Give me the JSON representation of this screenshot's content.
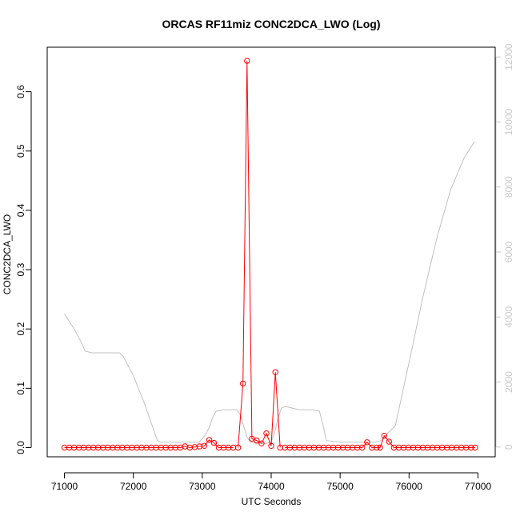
{
  "chart_data": {
    "type": "line",
    "title": "ORCAS RF11miz CONC2DCA_LWO (Log)",
    "xlabel": "UTC Seconds",
    "ylabel": "CONC2DCA_LWO",
    "xlim": [
      70750,
      77250
    ],
    "ylim": [
      -0.0155,
      0.675
    ],
    "ylim_right": [
      -300,
      12300
    ],
    "x_ticks": [
      71000,
      72000,
      73000,
      74000,
      75000,
      76000,
      77000
    ],
    "y_ticks": [
      "0.0",
      "0.1",
      "0.2",
      "0.3",
      "0.4",
      "0.5",
      "0.6"
    ],
    "y_tick_values": [
      0.0,
      0.1,
      0.2,
      0.3,
      0.4,
      0.5,
      0.6
    ],
    "y_right_ticks": [
      0,
      2000,
      4000,
      6000,
      8000,
      10000,
      12000
    ],
    "grid": false,
    "legend": "none",
    "series": [
      {
        "style": "line+points",
        "color": "#ff0000",
        "axis": "left",
        "x": [
          71000,
          71070,
          71140,
          71210,
          71280,
          71350,
          71420,
          71490,
          71560,
          71630,
          71700,
          71770,
          71840,
          71910,
          71980,
          72050,
          72120,
          72190,
          72260,
          72330,
          72400,
          72470,
          72540,
          72610,
          72680,
          72750,
          72820,
          72890,
          72960,
          73030,
          73100,
          73170,
          73240,
          73310,
          73380,
          73450,
          73520,
          73590,
          73650,
          73720,
          73790,
          73860,
          73930,
          74000,
          74060,
          74130,
          74200,
          74270,
          74340,
          74410,
          74480,
          74550,
          74620,
          74690,
          74760,
          74830,
          74900,
          74970,
          75040,
          75110,
          75180,
          75250,
          75320,
          75390,
          75460,
          75530,
          75580,
          75640,
          75710,
          75780,
          75850,
          75920,
          75990,
          76060,
          76130,
          76200,
          76270,
          76340,
          76410,
          76480,
          76550,
          76620,
          76690,
          76760,
          76830,
          76900,
          76960
        ],
        "y": [
          0,
          0,
          0,
          0,
          0,
          0,
          0,
          0,
          0,
          0,
          0,
          0,
          0,
          0,
          0,
          0,
          0,
          0,
          0,
          0,
          0,
          0,
          0,
          0,
          0,
          0.002,
          0,
          0.001,
          0.002,
          0.003,
          0.013,
          0.008,
          0,
          0,
          0,
          0,
          0,
          0.108,
          0.652,
          0.015,
          0.012,
          0.007,
          0.024,
          0.003,
          0.127,
          0,
          0,
          0,
          0,
          0,
          0,
          0,
          0,
          0,
          0,
          0,
          0,
          0,
          0,
          0,
          0,
          0,
          0,
          0.009,
          0,
          0,
          0,
          0.02,
          0.01,
          0,
          0,
          0,
          0,
          0,
          0,
          0,
          0,
          0,
          0,
          0,
          0,
          0,
          0,
          0,
          0,
          0,
          0
        ],
        "line_breaks_after_x": [
          73450,
          74130
        ]
      },
      {
        "style": "line",
        "color": "#c0c0c0",
        "axis": "right",
        "x": [
          71000,
          71150,
          71250,
          71300,
          71400,
          71500,
          71600,
          71700,
          71800,
          71850,
          72000,
          72150,
          72300,
          72350,
          72400,
          72600,
          72800,
          72900,
          72950,
          73000,
          73050,
          73100,
          73150,
          73200,
          73300,
          73400,
          73500,
          73550,
          73600,
          73650,
          73700,
          73800,
          73900,
          74000,
          74050,
          74100,
          74150,
          74200,
          74300,
          74400,
          74500,
          74600,
          74700,
          74750,
          74800,
          75000,
          75200,
          75400,
          75500,
          75600,
          75700,
          75800,
          76000,
          76200,
          76400,
          76600,
          76800,
          76950
        ],
        "y": [
          4100,
          3600,
          3200,
          2950,
          2900,
          2900,
          2900,
          2900,
          2900,
          2800,
          2200,
          1400,
          500,
          200,
          150,
          150,
          150,
          150,
          150,
          250,
          400,
          600,
          900,
          1100,
          1150,
          1150,
          1150,
          1000,
          650,
          300,
          150,
          100,
          100,
          150,
          450,
          900,
          1200,
          1250,
          1200,
          1150,
          1150,
          1150,
          1100,
          700,
          200,
          150,
          150,
          150,
          150,
          200,
          450,
          650,
          2600,
          4600,
          6400,
          7900,
          8900,
          9400
        ]
      }
    ]
  }
}
